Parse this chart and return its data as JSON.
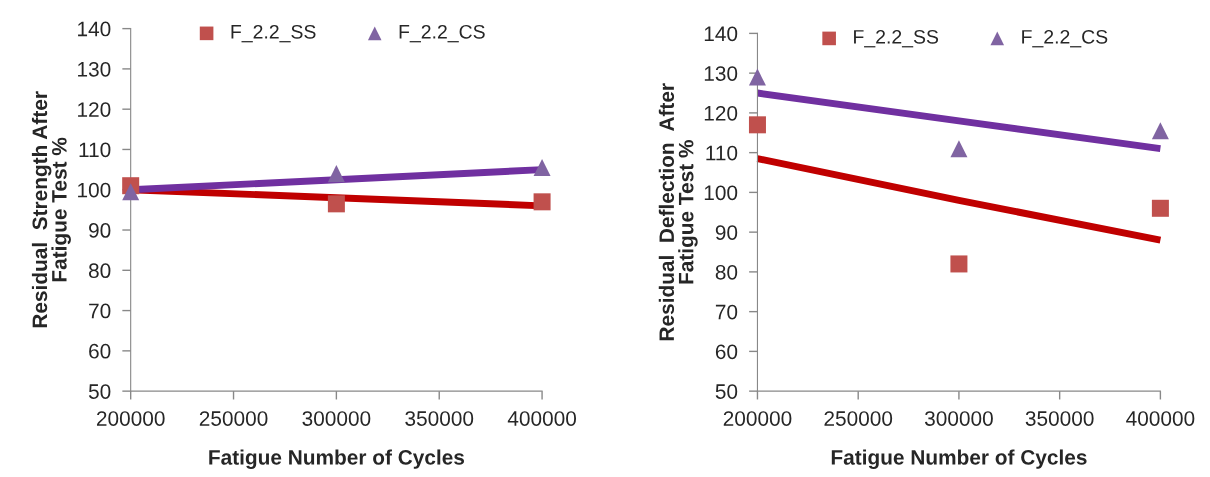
{
  "chart_data": [
    {
      "type": "scatter",
      "xlabel": "Fatigue Number of Cycles",
      "ylabel": "Residual  Strength After\nFatigue Test %",
      "xlim": [
        200000,
        400000
      ],
      "xticks": [
        200000,
        250000,
        300000,
        350000,
        400000
      ],
      "ylim": [
        50,
        140
      ],
      "yticks": [
        50,
        60,
        70,
        80,
        90,
        100,
        110,
        120,
        130,
        140
      ],
      "grid": false,
      "legend": "top",
      "x": [
        200000,
        300000,
        400000
      ],
      "series": [
        {
          "name": "F_2.2_SS",
          "color": "#c0504d",
          "marker": "square",
          "values": [
            101,
            96.5,
            97
          ]
        },
        {
          "name": "F_2.2_CS",
          "color": "#8064a2",
          "marker": "triangle",
          "values": [
            99.5,
            104,
            105.5
          ]
        },
        {
          "type": "line",
          "color": "#c00000",
          "values": [
            100,
            98,
            96
          ]
        },
        {
          "type": "line",
          "color": "#7030a0",
          "values": [
            100,
            102.5,
            105
          ]
        }
      ]
    },
    {
      "type": "scatter",
      "xlabel": "Fatigue Number of Cycles",
      "ylabel": "Residual  Deflection  After\nFatigue Test %",
      "xlim": [
        200000,
        400000
      ],
      "xticks": [
        200000,
        250000,
        300000,
        350000,
        400000
      ],
      "ylim": [
        50,
        140
      ],
      "yticks": [
        50,
        60,
        70,
        80,
        90,
        100,
        110,
        120,
        130,
        140
      ],
      "grid": false,
      "legend": "top",
      "x": [
        200000,
        300000,
        400000
      ],
      "series": [
        {
          "name": "F_2.2_SS",
          "color": "#c0504d",
          "marker": "square",
          "values": [
            117,
            82,
            96
          ]
        },
        {
          "name": "F_2.2_CS",
          "color": "#8064a2",
          "marker": "triangle",
          "values": [
            129,
            111,
            115.5
          ]
        },
        {
          "type": "line",
          "color": "#c00000",
          "values": [
            108.5,
            98,
            88
          ]
        },
        {
          "type": "line",
          "color": "#7030a0",
          "values": [
            125,
            118,
            111
          ]
        }
      ]
    }
  ]
}
